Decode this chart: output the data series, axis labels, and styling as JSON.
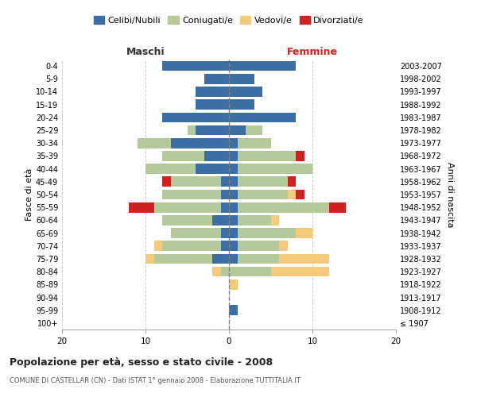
{
  "age_groups": [
    "100+",
    "95-99",
    "90-94",
    "85-89",
    "80-84",
    "75-79",
    "70-74",
    "65-69",
    "60-64",
    "55-59",
    "50-54",
    "45-49",
    "40-44",
    "35-39",
    "30-34",
    "25-29",
    "20-24",
    "15-19",
    "10-14",
    "5-9",
    "0-4"
  ],
  "birth_years": [
    "≤ 1907",
    "1908-1912",
    "1913-1917",
    "1918-1922",
    "1923-1927",
    "1928-1932",
    "1933-1937",
    "1938-1942",
    "1943-1947",
    "1948-1952",
    "1953-1957",
    "1958-1962",
    "1963-1967",
    "1968-1972",
    "1973-1977",
    "1978-1982",
    "1983-1987",
    "1988-1992",
    "1993-1997",
    "1998-2002",
    "2003-2007"
  ],
  "colors": {
    "celibi": "#3a6ea5",
    "coniugati": "#b5c99a",
    "vedovi": "#f5c97a",
    "divorziati": "#cc2222"
  },
  "maschi": {
    "celibi": [
      0,
      0,
      0,
      0,
      0,
      2,
      1,
      1,
      2,
      1,
      1,
      1,
      4,
      3,
      7,
      4,
      8,
      4,
      4,
      3,
      8
    ],
    "coniugati": [
      0,
      0,
      0,
      0,
      1,
      7,
      7,
      6,
      6,
      8,
      7,
      6,
      6,
      5,
      4,
      1,
      0,
      0,
      0,
      0,
      0
    ],
    "vedovi": [
      0,
      0,
      0,
      0,
      1,
      1,
      1,
      0,
      0,
      0,
      0,
      0,
      0,
      0,
      0,
      0,
      0,
      0,
      0,
      0,
      0
    ],
    "divorziati": [
      0,
      0,
      0,
      0,
      0,
      0,
      0,
      0,
      0,
      3,
      0,
      1,
      0,
      0,
      0,
      0,
      0,
      0,
      0,
      0,
      0
    ]
  },
  "femmine": {
    "celibi": [
      0,
      1,
      0,
      0,
      0,
      1,
      1,
      1,
      1,
      1,
      1,
      1,
      1,
      1,
      1,
      2,
      8,
      3,
      4,
      3,
      8
    ],
    "coniugati": [
      0,
      0,
      0,
      0,
      5,
      5,
      5,
      7,
      4,
      11,
      6,
      6,
      9,
      7,
      4,
      2,
      0,
      0,
      0,
      0,
      0
    ],
    "vedovi": [
      0,
      0,
      0,
      1,
      7,
      6,
      1,
      2,
      1,
      0,
      1,
      0,
      0,
      0,
      0,
      0,
      0,
      0,
      0,
      0,
      0
    ],
    "divorziati": [
      0,
      0,
      0,
      0,
      0,
      0,
      0,
      0,
      0,
      2,
      1,
      1,
      0,
      1,
      0,
      0,
      0,
      0,
      0,
      0,
      0
    ]
  },
  "xlim": 20,
  "title": "Popolazione per età, sesso e stato civile - 2008",
  "subtitle": "COMUNE DI CASTELLAR (CN) - Dati ISTAT 1° gennaio 2008 - Elaborazione TUTTITALIA.IT",
  "ylabel_left": "Fasce di età",
  "ylabel_right": "Anni di nascita",
  "xlabel_left": "Maschi",
  "xlabel_right": "Femmine",
  "legend_labels": [
    "Celibi/Nubili",
    "Coniugati/e",
    "Vedovi/e",
    "Divorziati/e"
  ],
  "bg_color": "#ffffff",
  "grid_color": "#cccccc",
  "maschi_color": "#333333",
  "femmine_color": "#cc2222"
}
